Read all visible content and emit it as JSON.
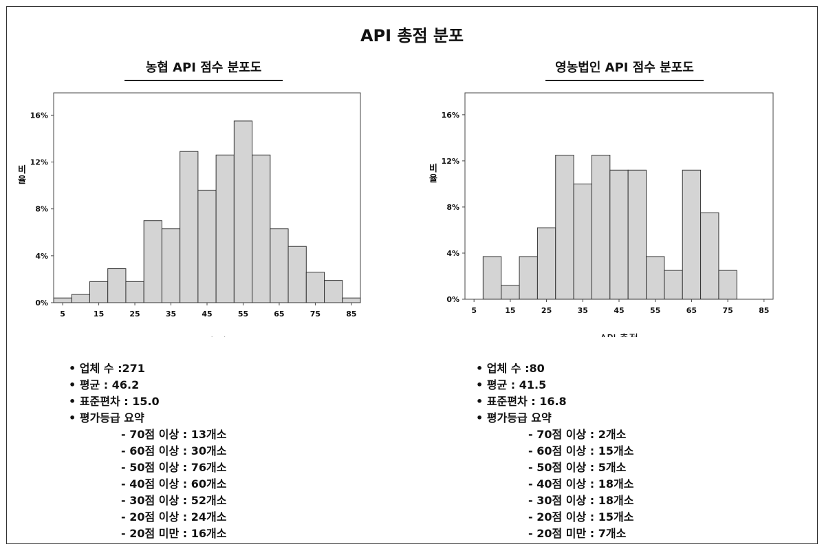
{
  "page_title": "API 총점 분포",
  "chart_data": [
    {
      "type": "bar",
      "title": "농협 API 점수 분포도",
      "xlabel": "API 총점",
      "ylabel": "비율",
      "x_ticks": [
        "5",
        "15",
        "25",
        "35",
        "45",
        "55",
        "65",
        "75",
        "85"
      ],
      "x_range": [
        2.5,
        87.5
      ],
      "y_ticks": [
        "0%",
        "4%",
        "8%",
        "12%",
        "16%"
      ],
      "ylim": [
        0,
        17.9
      ],
      "bins": [
        5,
        10,
        15,
        20,
        25,
        30,
        35,
        40,
        45,
        50,
        55,
        60,
        65,
        70,
        75,
        80,
        85
      ],
      "values": [
        0.4,
        0.7,
        1.8,
        2.9,
        1.8,
        7.0,
        6.3,
        12.9,
        9.6,
        12.6,
        15.5,
        12.6,
        6.3,
        4.8,
        2.6,
        1.9,
        0.4
      ],
      "bar_color": "#d4d4d4",
      "stats": {
        "count": "• 업체 수 :271",
        "mean": "• 평균 : 46.2",
        "std": "• 표준편차 : 15.0",
        "grade_header": "• 평가등급 요약",
        "grades": [
          "- 70점 이상 : 13개소",
          "- 60점 이상 : 30개소",
          "- 50점 이상 : 76개소",
          "- 40점 이상 : 60개소",
          "- 30점 이상 : 52개소",
          "- 20점 이상 : 24개소",
          "- 20점 미만 : 16개소"
        ]
      }
    },
    {
      "type": "bar",
      "title": "영농법인 API 점수 분포도",
      "xlabel": "API 총점",
      "ylabel": "비율",
      "x_ticks": [
        "5",
        "15",
        "25",
        "35",
        "45",
        "55",
        "65",
        "75",
        "85"
      ],
      "x_range": [
        2.5,
        87.5
      ],
      "y_ticks": [
        "0%",
        "4%",
        "8%",
        "12%",
        "16%"
      ],
      "ylim": [
        0,
        17.9
      ],
      "bins": [
        10,
        15,
        20,
        25,
        30,
        35,
        40,
        45,
        50,
        55,
        60,
        65,
        70,
        75
      ],
      "values": [
        3.7,
        1.2,
        3.7,
        6.2,
        12.5,
        10.0,
        12.5,
        11.2,
        11.2,
        3.7,
        2.5,
        11.2,
        7.5,
        2.5
      ],
      "bar_color": "#d4d4d4",
      "stats": {
        "count": "• 업체 수 :80",
        "mean": "• 평균 : 41.5",
        "std": "• 표준편차 : 16.8",
        "grade_header": "• 평가등급 요약",
        "grades": [
          "- 70점 이상 : 2개소",
          "- 60점 이상 : 15개소",
          "- 50점 이상 : 5개소",
          "- 40점 이상 : 18개소",
          "- 30점 이상 : 18개소",
          "- 20점 이상 : 15개소",
          "- 20점 미만 : 7개소"
        ]
      }
    }
  ]
}
